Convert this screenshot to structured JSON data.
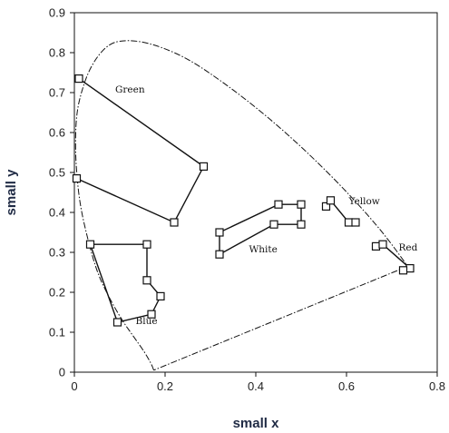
{
  "chart_data": {
    "type": "line",
    "title": "",
    "xlabel": "small x",
    "ylabel": "small y",
    "xlim": [
      0,
      0.8
    ],
    "ylim": [
      0,
      0.9
    ],
    "x_ticks": [
      "0",
      "0.2",
      "0.4",
      "0.6",
      "0.8"
    ],
    "y_ticks": [
      "0",
      "0.1",
      "0.2",
      "0.3",
      "0.4",
      "0.5",
      "0.6",
      "0.7",
      "0.8",
      "0.9"
    ],
    "grid": false,
    "colors": {
      "line": "#111111",
      "marker_fill": "#ffffff",
      "axis_label": "#1f2a44"
    },
    "locus": [
      [
        0.175,
        0.005
      ],
      [
        0.17,
        0.02
      ],
      [
        0.155,
        0.05
      ],
      [
        0.13,
        0.09
      ],
      [
        0.105,
        0.13
      ],
      [
        0.075,
        0.19
      ],
      [
        0.05,
        0.25
      ],
      [
        0.03,
        0.33
      ],
      [
        0.012,
        0.42
      ],
      [
        0.004,
        0.51
      ],
      [
        0.002,
        0.58
      ],
      [
        0.005,
        0.65
      ],
      [
        0.015,
        0.7
      ],
      [
        0.03,
        0.75
      ],
      [
        0.05,
        0.79
      ],
      [
        0.075,
        0.82
      ],
      [
        0.1,
        0.83
      ],
      [
        0.14,
        0.83
      ],
      [
        0.19,
        0.815
      ],
      [
        0.25,
        0.785
      ],
      [
        0.31,
        0.74
      ],
      [
        0.37,
        0.69
      ],
      [
        0.43,
        0.635
      ],
      [
        0.49,
        0.575
      ],
      [
        0.55,
        0.51
      ],
      [
        0.61,
        0.44
      ],
      [
        0.665,
        0.37
      ],
      [
        0.7,
        0.32
      ],
      [
        0.735,
        0.265
      ]
    ],
    "purple_line": [
      [
        0.735,
        0.265
      ],
      [
        0.175,
        0.005
      ]
    ],
    "series": [
      {
        "name": "Green",
        "points": [
          [
            0.01,
            0.735
          ],
          [
            0.285,
            0.515
          ],
          [
            0.22,
            0.375
          ],
          [
            0.005,
            0.485
          ]
        ]
      },
      {
        "name": "White",
        "points": [
          [
            0.32,
            0.35
          ],
          [
            0.32,
            0.295
          ],
          [
            0.44,
            0.37
          ],
          [
            0.5,
            0.37
          ],
          [
            0.5,
            0.42
          ],
          [
            0.45,
            0.42
          ],
          [
            0.32,
            0.35
          ]
        ]
      },
      {
        "name": "Yellow",
        "points": [
          [
            0.555,
            0.415
          ],
          [
            0.565,
            0.43
          ],
          [
            0.605,
            0.375
          ],
          [
            0.62,
            0.375
          ]
        ]
      },
      {
        "name": "Red",
        "points": [
          [
            0.665,
            0.315
          ],
          [
            0.68,
            0.32
          ],
          [
            0.74,
            0.26
          ],
          [
            0.725,
            0.255
          ]
        ]
      },
      {
        "name": "Blue",
        "points": [
          [
            0.035,
            0.32
          ],
          [
            0.16,
            0.32
          ],
          [
            0.16,
            0.23
          ],
          [
            0.19,
            0.19
          ],
          [
            0.17,
            0.145
          ],
          [
            0.095,
            0.125
          ],
          [
            0.035,
            0.32
          ]
        ]
      }
    ],
    "annotations": [
      {
        "text": "Green",
        "x": 0.09,
        "y": 0.7
      },
      {
        "text": "White",
        "x": 0.385,
        "y": 0.3
      },
      {
        "text": "Yellow",
        "x": 0.605,
        "y": 0.42
      },
      {
        "text": "Red",
        "x": 0.715,
        "y": 0.305
      },
      {
        "text": "Blue",
        "x": 0.135,
        "y": 0.12
      }
    ]
  }
}
